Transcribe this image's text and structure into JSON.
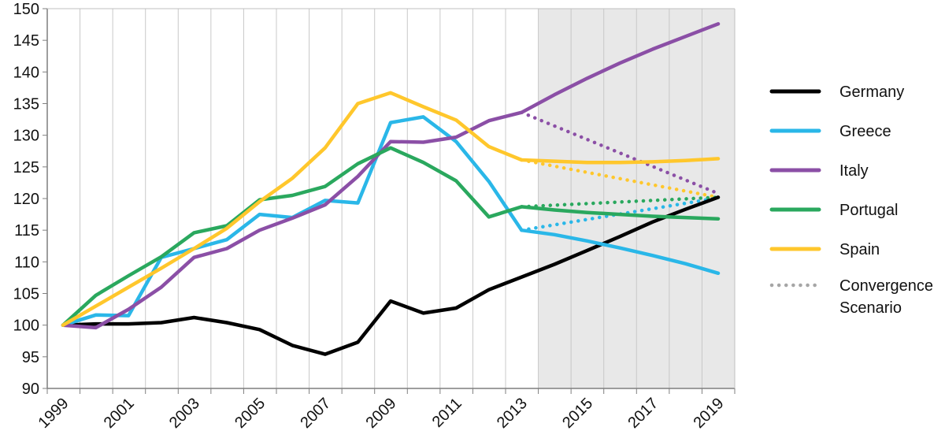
{
  "chart_data": {
    "type": "line",
    "title": "",
    "xlabel": "",
    "ylabel": "",
    "xlim": [
      1999,
      2019
    ],
    "ylim": [
      90,
      150
    ],
    "yticks": [
      90,
      95,
      100,
      105,
      110,
      115,
      120,
      125,
      130,
      135,
      140,
      145,
      150
    ],
    "xticks": [
      "1999",
      "2001",
      "2003",
      "2005",
      "2007",
      "2009",
      "2011",
      "2013",
      "2015",
      "2017",
      "2019"
    ],
    "grid": "vertical",
    "projection_shading": {
      "from": 2014,
      "to": 2019,
      "color": "#e8e8e8"
    },
    "legend_placement": "right",
    "x": [
      1999,
      2000,
      2001,
      2002,
      2003,
      2004,
      2005,
      2006,
      2007,
      2008,
      2009,
      2010,
      2011,
      2012,
      2013,
      2014,
      2015,
      2016,
      2017,
      2018,
      2019
    ],
    "series": [
      {
        "name": "Germany",
        "color": "#000000",
        "style": "solid",
        "values": [
          100,
          100.2,
          100.2,
          100.4,
          101.2,
          100.4,
          99.3,
          96.8,
          95.4,
          97.3,
          103.8,
          101.9,
          102.7,
          105.6,
          107.6,
          109.6,
          111.8,
          114,
          116.3,
          118.3,
          120.2
        ]
      },
      {
        "name": "Greece",
        "color": "#2ab7e8",
        "style": "solid",
        "values": [
          100,
          101.6,
          101.5,
          110.7,
          112.1,
          113.5,
          117.5,
          117,
          119.7,
          119.3,
          132,
          132.9,
          129,
          122.7,
          115,
          114.3,
          113.3,
          112.2,
          111,
          109.7,
          108.2
        ]
      },
      {
        "name": "Italy",
        "color": "#8b4fa6",
        "style": "solid",
        "values": [
          100,
          99.6,
          102.5,
          106,
          110.7,
          112.1,
          115,
          116.9,
          119,
          123.5,
          129,
          128.9,
          129.7,
          132.3,
          133.6,
          136.4,
          139,
          141.4,
          143.6,
          145.6,
          147.6
        ]
      },
      {
        "name": "Portugal",
        "color": "#2aa85e",
        "style": "solid",
        "values": [
          100,
          104.7,
          107.8,
          110.8,
          114.6,
          115.7,
          119.8,
          120.5,
          121.9,
          125.5,
          128,
          125.7,
          122.8,
          117.1,
          118.7,
          118.2,
          117.8,
          117.5,
          117.2,
          117,
          116.8
        ]
      },
      {
        "name": "Spain",
        "color": "#ffc72c",
        "style": "solid",
        "values": [
          100,
          103,
          106,
          109,
          112.1,
          115.3,
          119.5,
          123.2,
          128,
          135,
          136.7,
          134.5,
          132.4,
          128.2,
          126.1,
          125.9,
          125.7,
          125.7,
          125.8,
          126,
          126.3
        ]
      },
      {
        "name": "Convergence Scenario",
        "color": "#8b4fa6",
        "style": "dotted",
        "legend_color": "#a6a6a6",
        "dotted_lines": [
          {
            "color": "#8b4fa6",
            "x": [
              2013,
              2019
            ],
            "values": [
              133.6,
              120.8
            ]
          },
          {
            "color": "#ffc72c",
            "x": [
              2013,
              2019
            ],
            "values": [
              126.1,
              120.2
            ]
          },
          {
            "color": "#2aa85e",
            "x": [
              2013,
              2019
            ],
            "values": [
              118.7,
              120.2
            ]
          },
          {
            "color": "#2ab7e8",
            "x": [
              2013,
              2019
            ],
            "values": [
              115,
              120.1
            ]
          }
        ]
      }
    ]
  }
}
